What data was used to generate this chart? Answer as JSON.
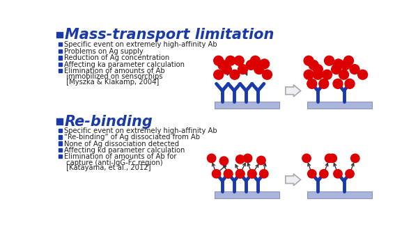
{
  "bg_color": "#ffffff",
  "title1": "Mass-transport limitation",
  "title2": "Re-binding",
  "title_color": "#1a3aaa",
  "title_fontsize": 15,
  "bullet_square_color": "#1a3aaa",
  "text_color": "#222222",
  "text_fontsize": 7.2,
  "red_color": "#dd0000",
  "blue_y_color": "#1a3aaa",
  "platform_color": "#aab4dd",
  "platform_edge": "#8899bb",
  "section1_bullets": [
    "Specific event on extremely high-affinity Ab",
    "Problems on Ag supply",
    "Reduction of Ag concentration",
    "Affecting ka parameter calculation",
    "Elimination of amounts of Ab",
    " immobilized on sensorchips",
    " [Myszka & Klakamp, 2004]"
  ],
  "section2_bullets": [
    "Specific event on extremely high-affinity Ab",
    "“Re-binding” of Ag dissociated from Ab",
    "None of Ag dissociation detected",
    "Affecting kd parameter calculation",
    "Elimination of amounts of Ab for",
    " capture (anti-IgG-Fc region)",
    " [Katayama, et al., 2012]"
  ],
  "s1_bullet_flags": [
    true,
    true,
    true,
    true,
    true,
    false,
    false
  ],
  "s2_bullet_flags": [
    true,
    true,
    true,
    true,
    true,
    false,
    false
  ]
}
